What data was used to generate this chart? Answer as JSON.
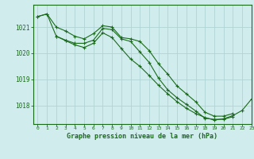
{
  "title": "Graphe pression niveau de la mer (hPa)",
  "bg_color": "#d0ecec",
  "grid_color": "#b0d4d4",
  "line_color": "#1a6b1a",
  "xlim": [
    -0.5,
    23
  ],
  "ylim": [
    1017.3,
    1021.85
  ],
  "yticks": [
    1018,
    1019,
    1020,
    1021
  ],
  "xticks": [
    0,
    1,
    2,
    3,
    4,
    5,
    6,
    7,
    8,
    9,
    10,
    11,
    12,
    13,
    14,
    15,
    16,
    17,
    18,
    19,
    20,
    21,
    22,
    23
  ],
  "series": [
    {
      "x": [
        0,
        1,
        2,
        3,
        4,
        5,
        6,
        7,
        8,
        9,
        10,
        11,
        12,
        13,
        14,
        15,
        16,
        17,
        18,
        19,
        20,
        21
      ],
      "y": [
        1021.4,
        1021.5,
        1021.0,
        1020.85,
        1020.65,
        1020.55,
        1020.75,
        1021.05,
        1021.0,
        1020.6,
        1020.55,
        1020.45,
        1020.1,
        1019.6,
        1019.2,
        1018.75,
        1018.45,
        1018.15,
        1017.75,
        1017.6,
        1017.6,
        1017.7
      ]
    },
    {
      "x": [
        0,
        1,
        2,
        3,
        4,
        5,
        6,
        7,
        8,
        9,
        10,
        11,
        12,
        13,
        14,
        15,
        16,
        17,
        18,
        19,
        20,
        21
      ],
      "y": [
        1021.4,
        1021.5,
        1020.65,
        1020.5,
        1020.38,
        1020.38,
        1020.5,
        1020.95,
        1020.9,
        1020.55,
        1020.45,
        1020.05,
        1019.65,
        1019.05,
        1018.6,
        1018.3,
        1018.05,
        1017.8,
        1017.52,
        1017.48,
        1017.48,
        1017.58
      ]
    },
    {
      "x": [
        2,
        3,
        4,
        5,
        6,
        7,
        8,
        9,
        10,
        11,
        12,
        13,
        14,
        15,
        16,
        17,
        18,
        19,
        20,
        21,
        22,
        23
      ],
      "y": [
        1020.65,
        1020.48,
        1020.32,
        1020.22,
        1020.38,
        1020.78,
        1020.6,
        1020.18,
        1019.78,
        1019.5,
        1019.15,
        1018.78,
        1018.45,
        1018.15,
        1017.9,
        1017.7,
        1017.55,
        1017.45,
        1017.5,
        1017.62,
        1017.82,
        1018.25
      ]
    }
  ]
}
